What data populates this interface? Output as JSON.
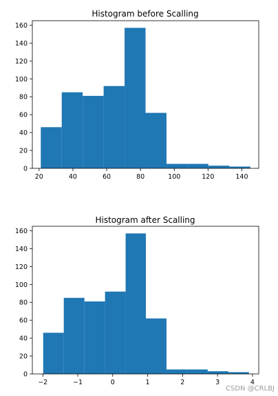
{
  "chart_data": [
    {
      "type": "bar",
      "title": "Histogram before Scalling",
      "xlabel": "",
      "ylabel": "",
      "bin_edges": [
        21,
        33.4,
        45.8,
        58.2,
        70.6,
        83,
        95.4,
        107.8,
        120.2,
        132.6,
        145
      ],
      "values": [
        46,
        85,
        81,
        92,
        157,
        62,
        5,
        5,
        3,
        2
      ],
      "xlim": [
        16,
        150
      ],
      "ylim": [
        0,
        165
      ],
      "xticks": [
        20,
        40,
        60,
        80,
        100,
        120,
        140
      ],
      "yticks": [
        0,
        20,
        40,
        60,
        80,
        100,
        120,
        140,
        160
      ],
      "color": "#1f77b4"
    },
    {
      "type": "bar",
      "title": "Histogram after Scalling",
      "xlabel": "",
      "ylabel": "",
      "bin_edges": [
        -1.99,
        -1.4,
        -0.81,
        -0.22,
        0.37,
        0.95,
        1.54,
        2.13,
        2.72,
        3.31,
        3.9
      ],
      "values": [
        46,
        85,
        81,
        92,
        157,
        62,
        5,
        5,
        3,
        2
      ],
      "xlim": [
        -2.3,
        4.18
      ],
      "ylim": [
        0,
        165
      ],
      "xticks": [
        -2,
        -1,
        0,
        1,
        2,
        3,
        4
      ],
      "yticks": [
        0,
        20,
        40,
        60,
        80,
        100,
        120,
        140,
        160
      ],
      "color": "#1f77b4"
    }
  ],
  "watermark": "CSDN @CRLBJ"
}
